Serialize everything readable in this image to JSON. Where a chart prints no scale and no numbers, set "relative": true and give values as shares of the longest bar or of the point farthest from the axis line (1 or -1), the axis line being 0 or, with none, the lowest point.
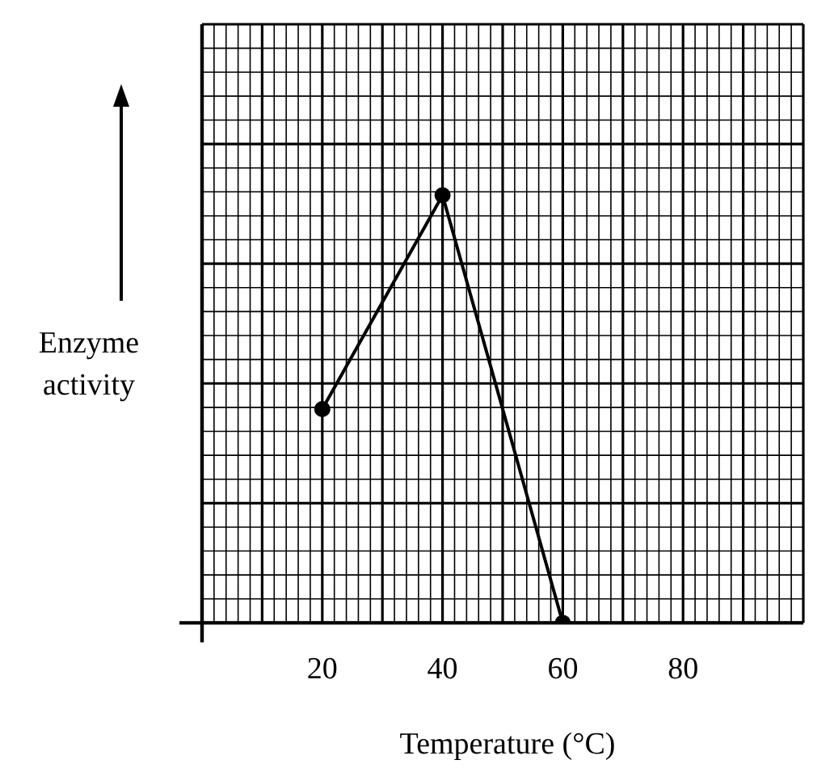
{
  "chart_data": {
    "type": "line",
    "relative": true,
    "xlabel": "Temperature (°C)",
    "ylabel": "Enzyme activity",
    "x": [
      20,
      40,
      60
    ],
    "series": [
      {
        "color": "#000000",
        "values": [
          0.5,
          1,
          0
        ]
      }
    ],
    "xlim": [
      0,
      100
    ],
    "xticks": [
      20,
      40,
      60,
      80
    ],
    "grid": true,
    "marker": "circle",
    "line_style": "solid",
    "legend": false
  }
}
